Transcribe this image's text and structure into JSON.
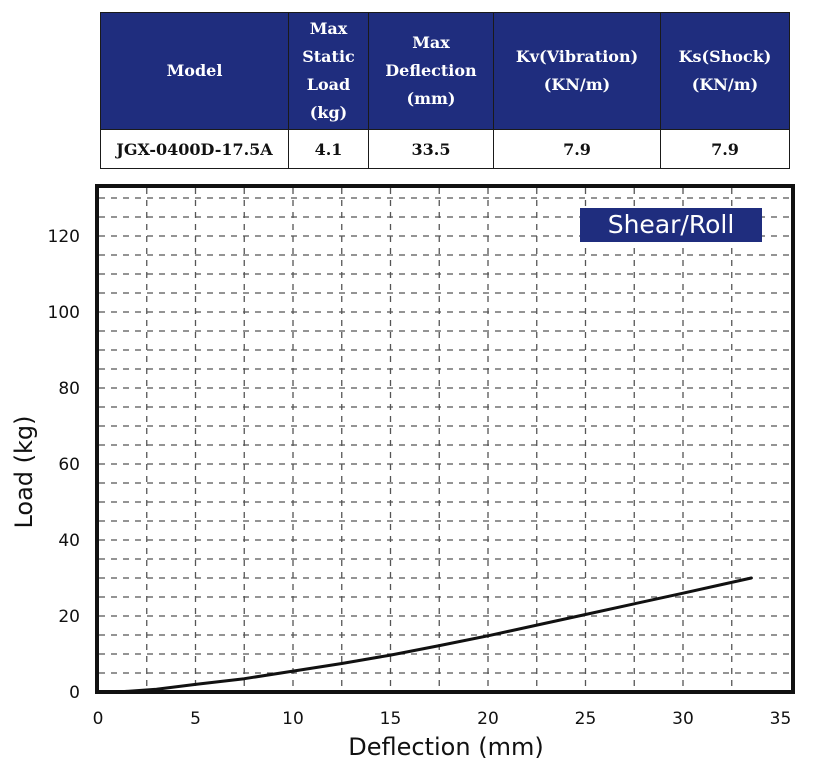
{
  "table": {
    "headers": [
      "Model",
      "Max\nStatic\nLoad\n(kg)",
      "Max\nDeflection\n(mm)",
      "Kv(Vibration)\n(KN/m)",
      "Ks(Shock)\n(KN/m)"
    ],
    "row": [
      "JGX-0400D-17.5A",
      "4.1",
      "33.5",
      "7.9",
      "7.9"
    ]
  },
  "chart_data": {
    "type": "line",
    "title": "",
    "legend": "Shear/Roll",
    "legend_placement": "top-right",
    "xlabel": "Deflection (mm)",
    "ylabel": "Load (kg)",
    "xlim": [
      0,
      35
    ],
    "ylim": [
      0,
      130
    ],
    "x_ticks": [
      0,
      5,
      10,
      15,
      20,
      25,
      30,
      35
    ],
    "y_ticks": [
      0,
      20,
      40,
      60,
      80,
      100,
      120
    ],
    "grid": true,
    "colors": {
      "line": "#111111",
      "legend_bg": "#1f2d7e",
      "header_bg": "#1f2d7e"
    },
    "series": [
      {
        "name": "Shear/Roll",
        "x": [
          1.0,
          3.0,
          5.0,
          7.5,
          10.0,
          12.5,
          15.0,
          17.5,
          20.0,
          22.5,
          25.0,
          27.5,
          30.0,
          32.0,
          33.5
        ],
        "y": [
          0.0,
          0.7,
          2.0,
          3.5,
          5.5,
          7.5,
          9.7,
          12.2,
          14.8,
          17.6,
          20.4,
          23.2,
          26.0,
          28.3,
          30.0
        ]
      }
    ]
  }
}
